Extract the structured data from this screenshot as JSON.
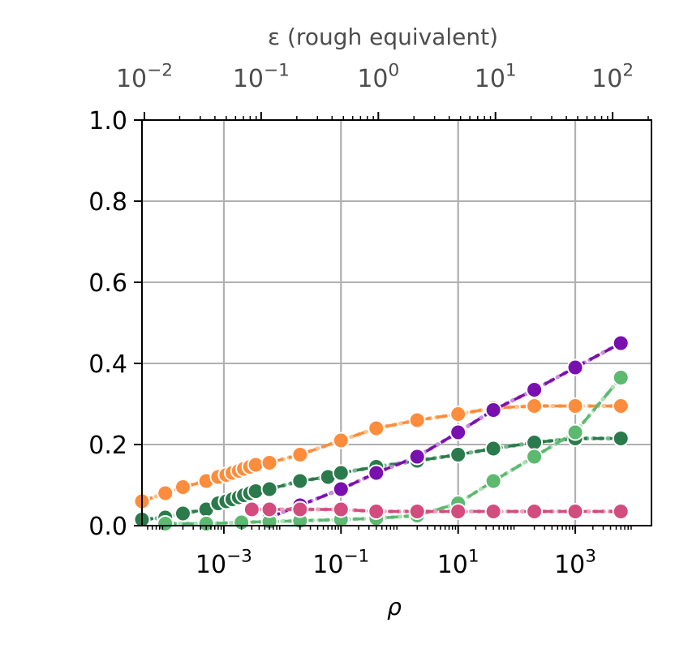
{
  "chart_data": {
    "type": "line",
    "title": "",
    "xlabel": "ρ",
    "top_xlabel": "ε (rough equivalent)",
    "ylabel": "",
    "x_scale": "log",
    "xlim": [
      4e-05,
      20000
    ],
    "ylim": [
      0,
      1
    ],
    "grid": true,
    "yticks": [
      "0.0",
      "0.2",
      "0.4",
      "0.6",
      "0.8",
      "1.0"
    ],
    "yticks_values": [
      0,
      0.2,
      0.4,
      0.6,
      0.8,
      1.0
    ],
    "xticks": [
      {
        "base": "10",
        "exp": "−3",
        "value": 0.001
      },
      {
        "base": "10",
        "exp": "−1",
        "value": 0.1
      },
      {
        "base": "10",
        "exp": "1",
        "value": 10
      },
      {
        "base": "10",
        "exp": "3",
        "value": 1000
      }
    ],
    "top_xticks": [
      {
        "base": "10",
        "exp": "−2",
        "rho": 4.4e-05
      },
      {
        "base": "10",
        "exp": "−1",
        "rho": 0.00433
      },
      {
        "base": "10",
        "exp": "0",
        "rho": 0.434
      },
      {
        "base": "10",
        "exp": "1",
        "rho": 43.4
      },
      {
        "base": "10",
        "exp": "2",
        "rho": 4340
      }
    ],
    "series": [
      {
        "color": "#fd8d3c",
        "light": "#fdbe85",
        "linestyle": "dashed",
        "x": [
          4e-05,
          0.0001,
          0.0002,
          0.0005,
          0.0008,
          0.0011,
          0.0014,
          0.0018,
          0.0022,
          0.0028,
          0.0035,
          0.006,
          0.02,
          0.1,
          0.4,
          2,
          10,
          40,
          200,
          1000,
          6000
        ],
        "y": [
          0.06,
          0.08,
          0.095,
          0.11,
          0.12,
          0.125,
          0.13,
          0.135,
          0.14,
          0.145,
          0.15,
          0.155,
          0.175,
          0.21,
          0.24,
          0.26,
          0.275,
          0.29,
          0.295,
          0.295,
          0.295
        ]
      },
      {
        "color": "#2b7a4b",
        "light": "#6ab187",
        "linestyle": "dashed",
        "x": [
          4e-05,
          0.0001,
          0.0002,
          0.0005,
          0.0008,
          0.0011,
          0.0014,
          0.0018,
          0.0022,
          0.0028,
          0.0035,
          0.006,
          0.02,
          0.06,
          0.1,
          0.4,
          2,
          10,
          40,
          200,
          1000,
          6000
        ],
        "y": [
          0.015,
          0.02,
          0.03,
          0.04,
          0.055,
          0.06,
          0.065,
          0.07,
          0.075,
          0.08,
          0.085,
          0.09,
          0.11,
          0.12,
          0.13,
          0.145,
          0.16,
          0.175,
          0.19,
          0.205,
          0.215,
          0.215
        ]
      },
      {
        "color": "#7a0fb0",
        "light": "#c084d8",
        "linestyle": "dashed",
        "x": [
          0.006,
          0.02,
          0.1,
          0.4,
          2,
          10,
          40,
          200,
          1000,
          6000
        ],
        "y": [
          0.02,
          0.05,
          0.09,
          0.13,
          0.17,
          0.23,
          0.285,
          0.335,
          0.39,
          0.45
        ]
      },
      {
        "color": "#5cb96f",
        "light": "#a6dcae",
        "linestyle": "dashed",
        "x": [
          0.0001,
          0.0005,
          0.002,
          0.006,
          0.02,
          0.1,
          0.4,
          2,
          10,
          40,
          200,
          1000,
          6000
        ],
        "y": [
          0.005,
          0.005,
          0.008,
          0.01,
          0.012,
          0.015,
          0.018,
          0.025,
          0.055,
          0.11,
          0.17,
          0.23,
          0.365
        ]
      },
      {
        "color": "#d24c7e",
        "light": "#e89ab6",
        "linestyle": "dashed",
        "x": [
          0.003,
          0.006,
          0.02,
          0.1,
          0.4,
          2,
          10,
          40,
          200,
          1000,
          6000
        ],
        "y": [
          0.04,
          0.04,
          0.04,
          0.04,
          0.035,
          0.035,
          0.035,
          0.035,
          0.035,
          0.035,
          0.035
        ]
      }
    ]
  }
}
